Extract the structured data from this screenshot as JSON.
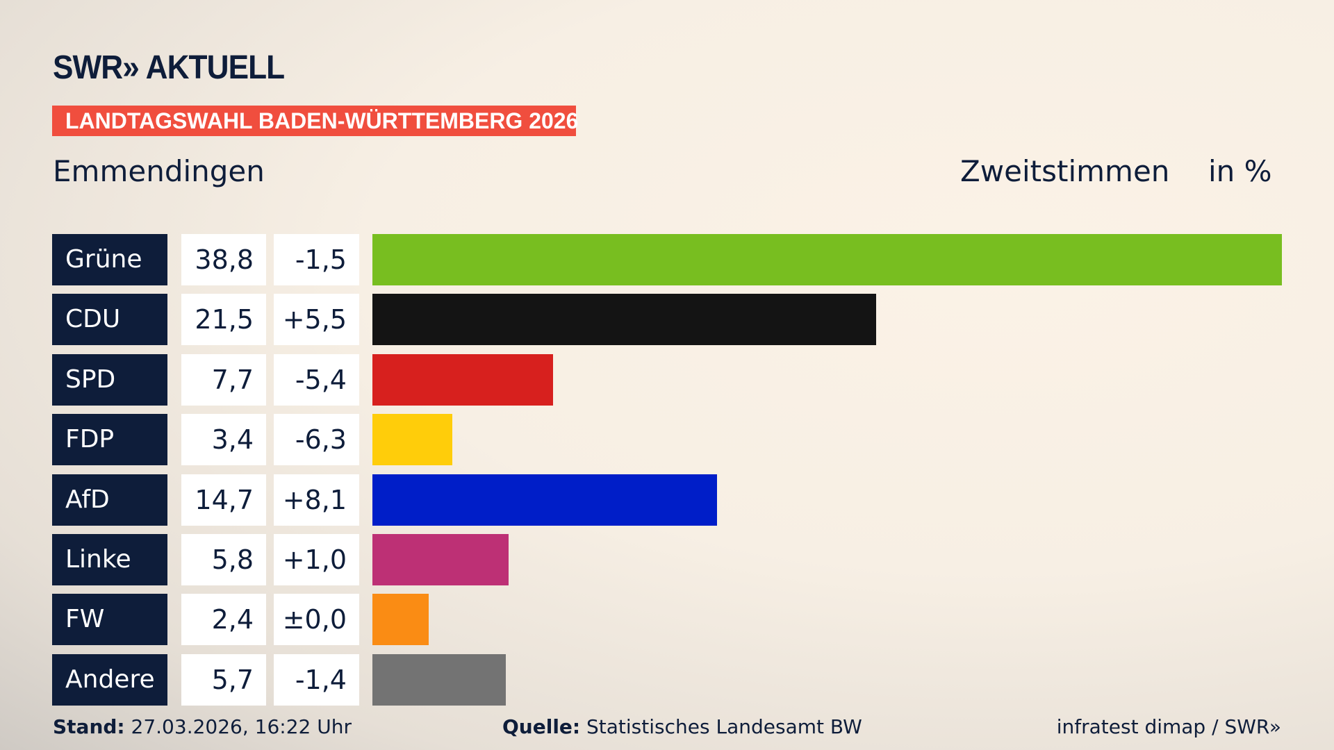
{
  "header": {
    "logo": "SWR» AKTUELL",
    "banner": "LANDTAGSWAHL BADEN-WÜRTTEMBERG 2026",
    "region": "Emmendingen",
    "metric": "Zweitstimmen",
    "unit": "in %"
  },
  "chart_data": {
    "type": "bar",
    "orientation": "horizontal",
    "title": "Emmendingen",
    "categories": [
      "Grüne",
      "CDU",
      "SPD",
      "FDP",
      "AfD",
      "Linke",
      "FW",
      "Andere"
    ],
    "values": [
      38.8,
      21.5,
      7.7,
      3.4,
      14.7,
      5.8,
      2.4,
      5.7
    ],
    "value_labels": [
      "38,8",
      "21,5",
      "7,7",
      "3,4",
      "14,7",
      "5,8",
      "2,4",
      "5,7"
    ],
    "diff_labels": [
      "-1,5",
      "+5,5",
      "-5,4",
      "-6,3",
      "+8,1",
      "+1,0",
      "±0,0",
      "-1,4"
    ],
    "colors": [
      "#78be20",
      "#141414",
      "#d7201e",
      "#ffcd0a",
      "#001ec8",
      "#bd3075",
      "#fa8c14",
      "#737373"
    ],
    "ylabel": "in %"
  },
  "footer": {
    "stand_label": "Stand:",
    "stand_value": "27.03.2026, 16:22 Uhr",
    "source_label": "Quelle:",
    "source_value": "Statistisches Landesamt BW",
    "credit": "infratest dimap / SWR»"
  }
}
